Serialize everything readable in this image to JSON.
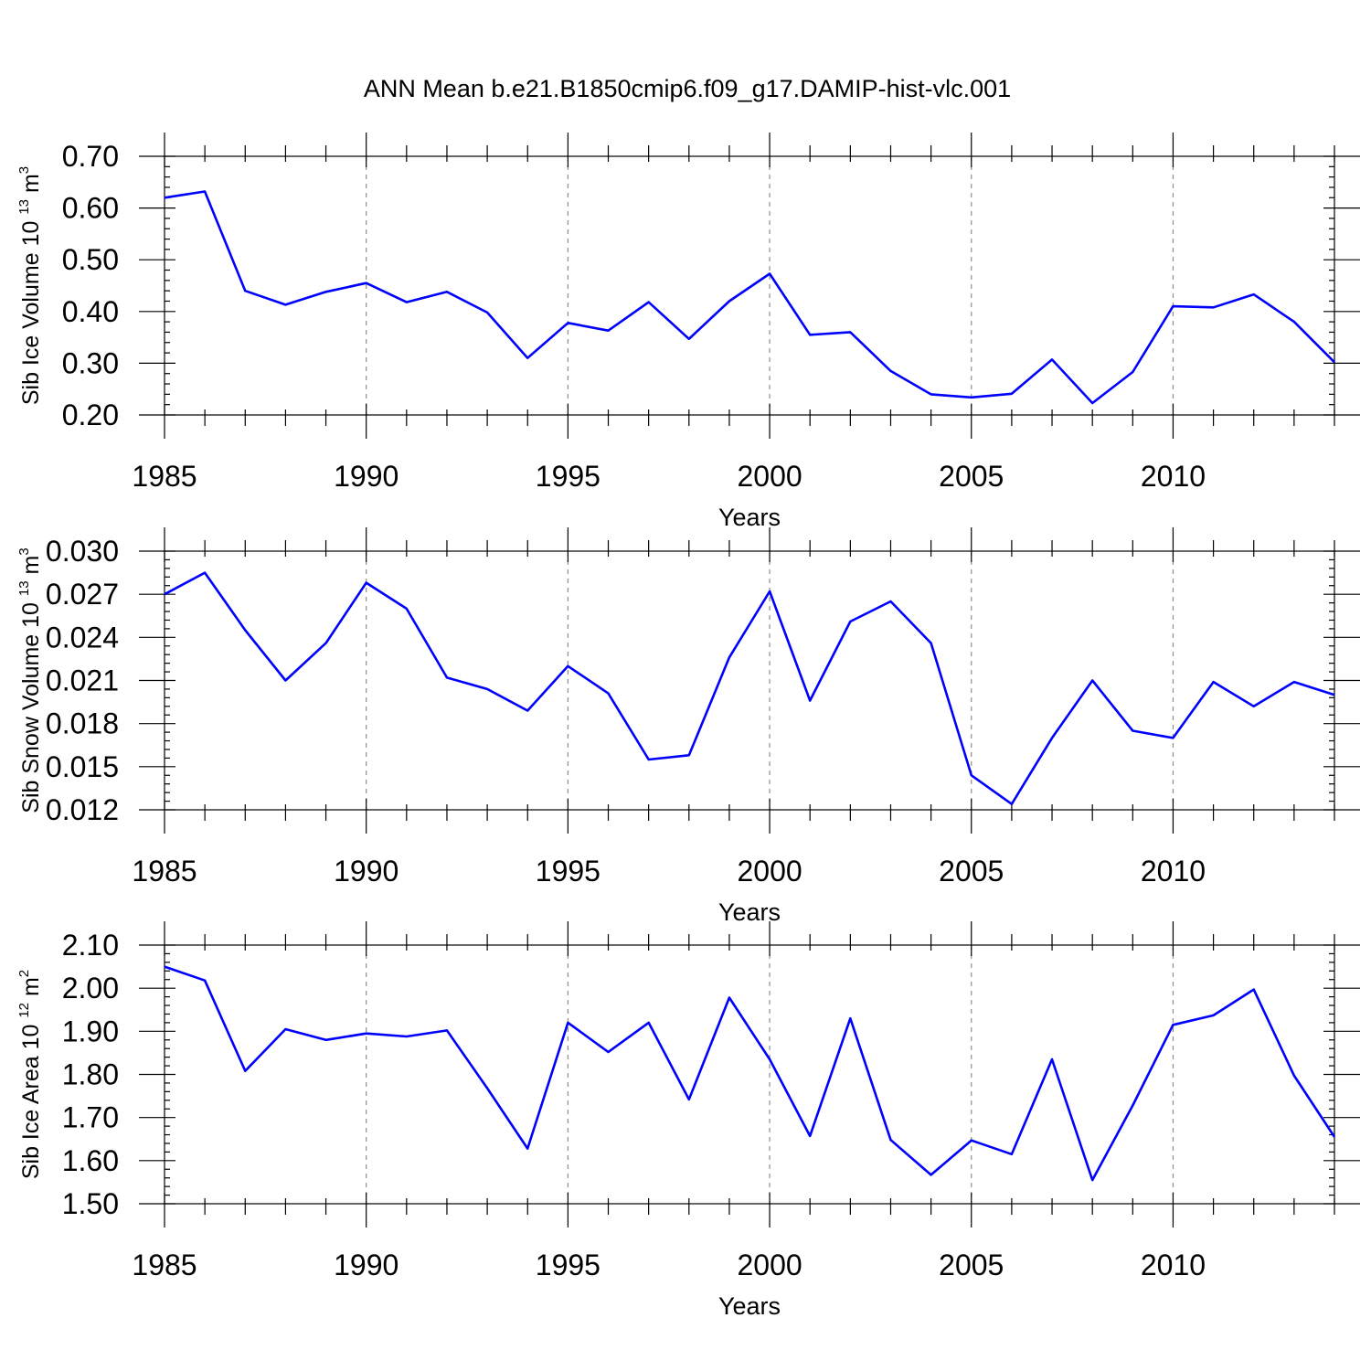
{
  "title": "ANN Mean b.e21.B1850cmip6.f09_g17.DAMIP-hist-vlc.001",
  "colors": {
    "line": "#0000ff",
    "grid": "#8c8c8c",
    "axis": "#000000"
  },
  "chart_data": [
    {
      "type": "line",
      "ylabel": "Sib Ice Volume 10",
      "ylabel_exponent": "13",
      "ylabel_unit": "m",
      "ylabel_unit_exponent": "3",
      "xlabel": "Years",
      "xlim": [
        1985,
        2014
      ],
      "ylim": [
        0.2,
        0.7
      ],
      "xticks": [
        "1985",
        "1990",
        "1995",
        "2000",
        "2005",
        "2010"
      ],
      "yticks": [
        "0.20",
        "0.30",
        "0.40",
        "0.50",
        "0.60",
        "0.70"
      ],
      "grid": "vertical dashed at labeled years",
      "x": [
        1985,
        1986,
        1987,
        1988,
        1989,
        1990,
        1991,
        1992,
        1993,
        1994,
        1995,
        1996,
        1997,
        1998,
        1999,
        2000,
        2001,
        2002,
        2003,
        2004,
        2005,
        2006,
        2007,
        2008,
        2009,
        2010,
        2011,
        2012,
        2013,
        2014
      ],
      "series": [
        {
          "values": [
            0.62,
            0.632,
            0.44,
            0.413,
            0.438,
            0.455,
            0.418,
            0.438,
            0.398,
            0.31,
            0.378,
            0.363,
            0.418,
            0.347,
            0.42,
            0.473,
            0.355,
            0.36,
            0.285,
            0.24,
            0.234,
            0.241,
            0.307,
            0.223,
            0.283,
            0.41,
            0.408,
            0.433,
            0.38,
            0.302
          ]
        }
      ]
    },
    {
      "type": "line",
      "ylabel": "Sib Snow Volume 10",
      "ylabel_exponent": "13",
      "ylabel_unit": "m",
      "ylabel_unit_exponent": "3",
      "xlabel": "Years",
      "xlim": [
        1985,
        2014
      ],
      "ylim": [
        0.012,
        0.03
      ],
      "xticks": [
        "1985",
        "1990",
        "1995",
        "2000",
        "2005",
        "2010"
      ],
      "yticks": [
        "0.012",
        "0.015",
        "0.018",
        "0.021",
        "0.024",
        "0.027",
        "0.030"
      ],
      "grid": "vertical dashed at labeled years",
      "x": [
        1985,
        1986,
        1987,
        1988,
        1989,
        1990,
        1991,
        1992,
        1993,
        1994,
        1995,
        1996,
        1997,
        1998,
        1999,
        2000,
        2001,
        2002,
        2003,
        2004,
        2005,
        2006,
        2007,
        2008,
        2009,
        2010,
        2011,
        2012,
        2013,
        2014
      ],
      "series": [
        {
          "values": [
            0.027,
            0.0285,
            0.0245,
            0.021,
            0.0236,
            0.0278,
            0.026,
            0.0212,
            0.0204,
            0.0189,
            0.022,
            0.0201,
            0.0155,
            0.0158,
            0.0226,
            0.0272,
            0.0196,
            0.0251,
            0.0265,
            0.0236,
            0.0144,
            0.0124,
            0.017,
            0.021,
            0.0175,
            0.017,
            0.0209,
            0.0192,
            0.0209,
            0.02
          ]
        }
      ]
    },
    {
      "type": "line",
      "ylabel": "Sib Ice Area 10",
      "ylabel_exponent": "12",
      "ylabel_unit": "m",
      "ylabel_unit_exponent": "2",
      "xlabel": "Years",
      "xlim": [
        1985,
        2014
      ],
      "ylim": [
        1.5,
        2.1
      ],
      "xticks": [
        "1985",
        "1990",
        "1995",
        "2000",
        "2005",
        "2010"
      ],
      "yticks": [
        "1.50",
        "1.60",
        "1.70",
        "1.80",
        "1.90",
        "2.00",
        "2.10"
      ],
      "grid": "vertical dashed at labeled years",
      "x": [
        1985,
        1986,
        1987,
        1988,
        1989,
        1990,
        1991,
        1992,
        1993,
        1994,
        1995,
        1996,
        1997,
        1998,
        1999,
        2000,
        2001,
        2002,
        2003,
        2004,
        2005,
        2006,
        2007,
        2008,
        2009,
        2010,
        2011,
        2012,
        2013,
        2014
      ],
      "series": [
        {
          "values": [
            2.05,
            2.018,
            1.808,
            1.905,
            1.88,
            1.895,
            1.888,
            1.902,
            1.768,
            1.628,
            1.92,
            1.852,
            1.92,
            1.742,
            1.978,
            1.835,
            1.657,
            1.93,
            1.648,
            1.567,
            1.647,
            1.615,
            1.835,
            1.555,
            1.728,
            1.915,
            1.937,
            1.997,
            1.797,
            1.655
          ]
        }
      ]
    }
  ]
}
